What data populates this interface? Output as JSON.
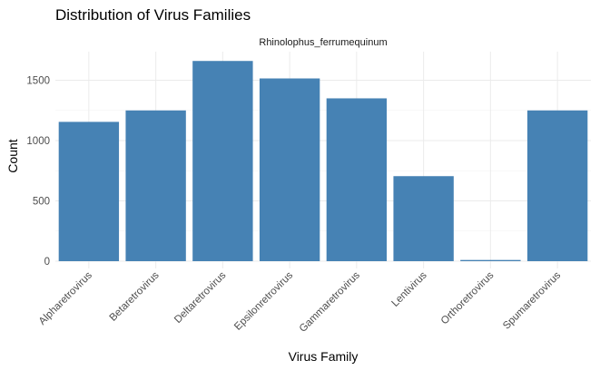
{
  "chart_data": {
    "type": "bar",
    "title": "Distribution of Virus Families",
    "facet_label": "Rhinolophus_ferrumequinum",
    "xlabel": "Virus Family",
    "ylabel": "Count",
    "categories": [
      "Alpharetrovirus",
      "Betaretrovirus",
      "Deltaretrovirus",
      "Epsilonretrovirus",
      "Gammaretrovirus",
      "Lentivirus",
      "Orthoretrovirus",
      "Spumaretrovirus"
    ],
    "values": [
      1155,
      1250,
      1660,
      1515,
      1350,
      705,
      10,
      1250
    ],
    "y_ticks": [
      0,
      500,
      1000,
      1500
    ],
    "ylim": [
      0,
      1730
    ],
    "bar_color": "#4682B4",
    "grid": true,
    "legend": "none"
  }
}
